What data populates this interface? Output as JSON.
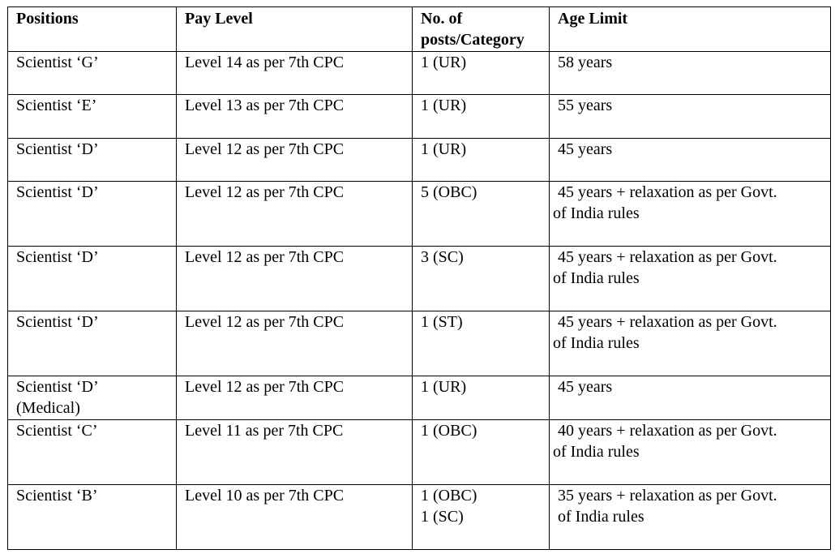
{
  "table": {
    "headers": [
      "Positions",
      "Pay Level",
      "No. of posts/Category",
      "Age Limit"
    ],
    "header_lines": {
      "posts": [
        "No. of",
        "posts/Category"
      ]
    },
    "rows": [
      {
        "position": [
          "Scientist ‘G’"
        ],
        "pay_level": "Level 14 as per 7th CPC",
        "posts": [
          "1 (UR)"
        ],
        "age": [
          "58 years"
        ]
      },
      {
        "position": [
          "Scientist ‘E’"
        ],
        "pay_level": "Level 13 as per 7th CPC",
        "posts": [
          "1 (UR)"
        ],
        "age": [
          "55 years"
        ]
      },
      {
        "position": [
          "Scientist ‘D’"
        ],
        "pay_level": "Level 12 as per 7th CPC",
        "posts": [
          "1 (UR)"
        ],
        "age": [
          "45 years"
        ]
      },
      {
        "position": [
          "Scientist ‘D’"
        ],
        "pay_level": "Level 12 as per 7th CPC",
        "posts": [
          "5 (OBC)"
        ],
        "age": [
          "45 years + relaxation as per Govt.",
          "of India rules"
        ]
      },
      {
        "position": [
          "Scientist ‘D’"
        ],
        "pay_level": "Level 12 as per 7th CPC",
        "posts": [
          "3 (SC)"
        ],
        "age": [
          "45 years + relaxation as per Govt.",
          "of India rules"
        ]
      },
      {
        "position": [
          "Scientist ‘D’"
        ],
        "pay_level": "Level 12 as per 7th CPC",
        "posts": [
          "1 (ST)"
        ],
        "age": [
          "45 years + relaxation as per Govt.",
          "of India rules"
        ]
      },
      {
        "position": [
          "Scientist ‘D’",
          "(Medical)"
        ],
        "pay_level": "Level 12 as per 7th CPC",
        "posts": [
          "1 (UR)"
        ],
        "age": [
          "45 years"
        ]
      },
      {
        "position": [
          "Scientist ‘C’"
        ],
        "pay_level": "Level 11 as per 7th CPC",
        "posts": [
          "1 (OBC)"
        ],
        "age": [
          "40 years + relaxation as per Govt.",
          "of India rules"
        ]
      },
      {
        "position": [
          "Scientist ‘B’"
        ],
        "pay_level": "Level 10 as per 7th CPC",
        "posts": [
          "1 (OBC)",
          "1 (SC)"
        ],
        "age": [
          "35 years + relaxation as per Govt.",
          "of India rules"
        ]
      }
    ]
  }
}
